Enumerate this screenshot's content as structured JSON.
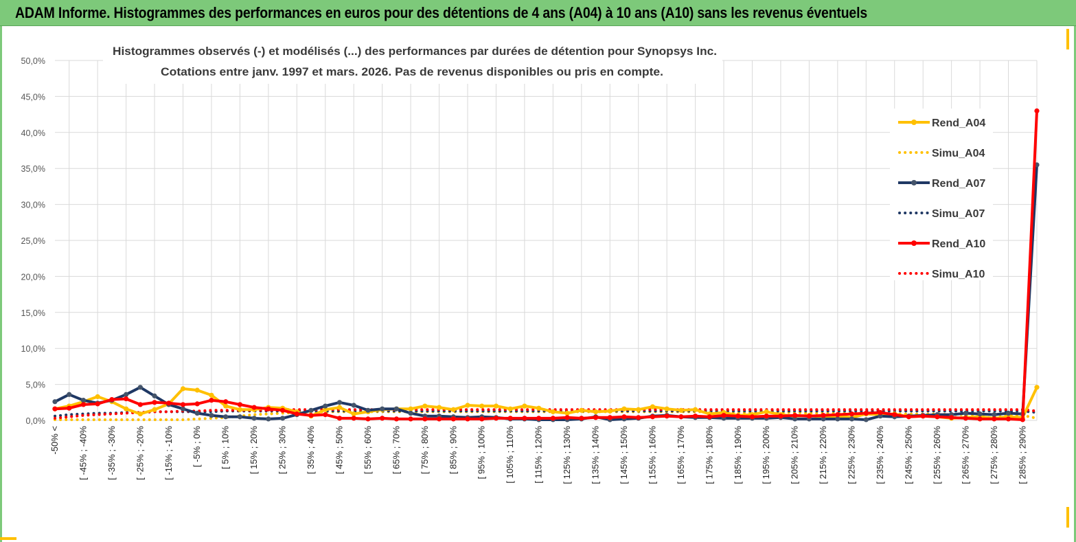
{
  "header": {
    "title": "ADAM Informe. Histogrammes des performances en euros pour des détentions de 4 ans (A04) à 10 ans (A10) sans les revenus éventuels"
  },
  "chart_data": {
    "type": "line",
    "title": "Histogrammes observés (-)  et modélisés (...) des performances par durées de détention pour Synopsys Inc.",
    "subtitle": "Cotations entre janv. 1997 et mars. 2026.  Pas de revenus disponibles ou pris en compte.",
    "ylim": [
      0,
      50
    ],
    "yticks": [
      "0,0%",
      "5,0%",
      "10,0%",
      "15,0%",
      "20,0%",
      "25,0%",
      "30,0%",
      "35,0%",
      "40,0%",
      "45,0%",
      "50,0%"
    ],
    "xtick_labels": [
      "-50% <",
      "[ -45% ; -40%",
      "[ -35% ; -30%",
      "[ -25% ; -20%",
      "[ -15% ; -10%",
      "[ -5% ; 0%",
      "[ 5% ; 10%",
      "[ 15% ; 20%",
      "[ 25% ; 30%",
      "[ 35% ; 40%",
      "[ 45% ; 50%",
      "[ 55% ; 60%",
      "[ 65% ; 70%",
      "[ 75% ; 80%",
      "[ 85% ; 90%",
      "[ 95% ; 100%",
      "[ 105% ; 110%",
      "[ 115% ; 120%",
      "[ 125% ; 130%",
      "[ 135% ; 140%",
      "[ 145% ; 150%",
      "[ 155% ; 160%",
      "[ 165% ; 170%",
      "[ 175% ; 180%",
      "[ 185% ; 190%",
      "[ 195% ; 200%",
      "[ 205% ; 210%",
      "[ 215% ; 220%",
      "[ 225% ; 230%",
      "[ 235% ; 240%",
      "[ 245% ; 250%",
      "[ 255% ; 260%",
      "[ 265% ; 270%",
      "[ 275% ; 280%",
      "[ 285% ; 290%"
    ],
    "n_points": 70,
    "colors": {
      "A04": "#ffc000",
      "A07": "#1f3864",
      "A10": "#ff0000",
      "grid": "#d9d9d9"
    },
    "series": [
      {
        "name": "Rend_A04",
        "style": "solid",
        "color": "#ffc000",
        "values": [
          1.6,
          2.0,
          2.6,
          3.3,
          2.6,
          1.6,
          0.9,
          1.5,
          2.3,
          4.4,
          4.2,
          3.5,
          2.0,
          1.5,
          1.5,
          1.8,
          1.7,
          1.2,
          0.6,
          1.5,
          1.8,
          0.9,
          1.2,
          1.5,
          1.6,
          1.6,
          2.0,
          1.8,
          1.5,
          2.1,
          2.0,
          2.0,
          1.6,
          2.0,
          1.7,
          1.2,
          1.0,
          1.4,
          1.2,
          1.3,
          1.6,
          1.5,
          1.9,
          1.6,
          1.4,
          1.5,
          0.9,
          1.1,
          0.7,
          0.8,
          1.2,
          0.8,
          0.6,
          0.7,
          0.4,
          0.6,
          0.4,
          0.9,
          0.8,
          0.9,
          0.5,
          0.6,
          0.5,
          0.3,
          0.4,
          0.5,
          0.3,
          0.5,
          0.4,
          4.6
        ]
      },
      {
        "name": "Simu_A04",
        "style": "dotted",
        "color": "#ffc000",
        "values": [
          0.1,
          0.1,
          0.1,
          0.1,
          0.1,
          0.1,
          0.1,
          0.1,
          0.1,
          0.1,
          0.2,
          0.3,
          0.4,
          0.6,
          0.8,
          0.9,
          1.0,
          1.1,
          1.1,
          1.2,
          1.2,
          1.2,
          1.2,
          1.2,
          1.2,
          1.2,
          1.2,
          1.2,
          1.2,
          1.2,
          1.2,
          1.2,
          1.2,
          1.2,
          1.2,
          1.2,
          1.2,
          1.2,
          1.2,
          1.2,
          1.2,
          1.2,
          1.2,
          1.2,
          1.2,
          1.2,
          1.2,
          1.1,
          1.1,
          1.1,
          1.1,
          1.1,
          1.1,
          1.0,
          1.0,
          1.0,
          1.0,
          1.0,
          0.9,
          0.9,
          0.9,
          0.9,
          0.9,
          0.8,
          0.8,
          0.8,
          0.8,
          0.7,
          0.7,
          0.3
        ]
      },
      {
        "name": "Rend_A07",
        "style": "solid",
        "color": "#1f3864",
        "values": [
          2.6,
          3.6,
          2.8,
          2.4,
          2.8,
          3.6,
          4.6,
          3.4,
          2.2,
          1.6,
          1.0,
          0.7,
          0.5,
          0.5,
          0.3,
          0.2,
          0.3,
          0.8,
          1.4,
          2.0,
          2.5,
          2.1,
          1.4,
          1.6,
          1.6,
          1.0,
          0.6,
          0.6,
          0.5,
          0.4,
          0.5,
          0.4,
          0.2,
          0.2,
          0.1,
          0.1,
          0.1,
          0.2,
          0.5,
          0.1,
          0.2,
          0.3,
          0.6,
          0.7,
          0.5,
          0.4,
          0.4,
          0.3,
          0.3,
          0.3,
          0.3,
          0.4,
          0.2,
          0.2,
          0.2,
          0.2,
          0.2,
          0.1,
          0.6,
          0.5,
          0.6,
          0.7,
          0.8,
          0.8,
          1.0,
          0.9,
          0.8,
          1.0,
          0.9,
          35.5
        ]
      },
      {
        "name": "Simu_A07",
        "style": "dotted",
        "color": "#1f3864",
        "values": [
          0.6,
          0.8,
          0.9,
          1.0,
          1.0,
          1.1,
          1.1,
          1.2,
          1.2,
          1.2,
          1.2,
          1.2,
          1.3,
          1.3,
          1.3,
          1.3,
          1.3,
          1.3,
          1.3,
          1.3,
          1.3,
          1.3,
          1.3,
          1.3,
          1.3,
          1.3,
          1.3,
          1.3,
          1.3,
          1.3,
          1.3,
          1.3,
          1.3,
          1.3,
          1.3,
          1.3,
          1.3,
          1.3,
          1.3,
          1.3,
          1.3,
          1.3,
          1.3,
          1.3,
          1.3,
          1.3,
          1.3,
          1.3,
          1.3,
          1.3,
          1.3,
          1.3,
          1.3,
          1.3,
          1.3,
          1.3,
          1.3,
          1.3,
          1.3,
          1.3,
          1.3,
          1.3,
          1.3,
          1.3,
          1.3,
          1.3,
          1.3,
          1.3,
          1.3,
          1.1
        ]
      },
      {
        "name": "Rend_A10",
        "style": "solid",
        "color": "#ff0000",
        "values": [
          1.6,
          1.7,
          2.2,
          2.3,
          2.9,
          3.0,
          2.2,
          2.5,
          2.4,
          2.2,
          2.3,
          2.8,
          2.6,
          2.2,
          1.8,
          1.6,
          1.4,
          0.9,
          0.7,
          0.8,
          0.3,
          0.3,
          0.2,
          0.3,
          0.2,
          0.2,
          0.2,
          0.2,
          0.2,
          0.2,
          0.2,
          0.3,
          0.3,
          0.3,
          0.3,
          0.3,
          0.4,
          0.3,
          0.4,
          0.4,
          0.5,
          0.4,
          0.5,
          0.6,
          0.5,
          0.6,
          0.5,
          0.7,
          0.6,
          0.5,
          0.6,
          0.6,
          0.7,
          0.6,
          0.7,
          0.8,
          0.9,
          1.0,
          1.1,
          0.8,
          0.5,
          0.6,
          0.5,
          0.4,
          0.3,
          0.2,
          0.2,
          0.2,
          0.1,
          43.0
        ]
      },
      {
        "name": "Simu_A10",
        "style": "dotted",
        "color": "#ff0000",
        "values": [
          0.3,
          0.5,
          0.7,
          0.8,
          0.9,
          1.0,
          1.1,
          1.2,
          1.2,
          1.3,
          1.3,
          1.4,
          1.4,
          1.4,
          1.4,
          1.4,
          1.5,
          1.5,
          1.5,
          1.5,
          1.5,
          1.5,
          1.5,
          1.5,
          1.5,
          1.5,
          1.5,
          1.5,
          1.5,
          1.5,
          1.5,
          1.5,
          1.5,
          1.5,
          1.5,
          1.5,
          1.5,
          1.5,
          1.5,
          1.5,
          1.5,
          1.5,
          1.5,
          1.5,
          1.5,
          1.5,
          1.5,
          1.5,
          1.5,
          1.5,
          1.5,
          1.5,
          1.5,
          1.5,
          1.5,
          1.5,
          1.5,
          1.5,
          1.5,
          1.5,
          1.5,
          1.5,
          1.5,
          1.5,
          1.5,
          1.5,
          1.5,
          1.5,
          1.5,
          1.3
        ]
      }
    ],
    "legend": [
      "Rend_A04",
      "Simu_A04",
      "Rend_A07",
      "Simu_A07",
      "Rend_A10",
      "Simu_A10"
    ]
  }
}
